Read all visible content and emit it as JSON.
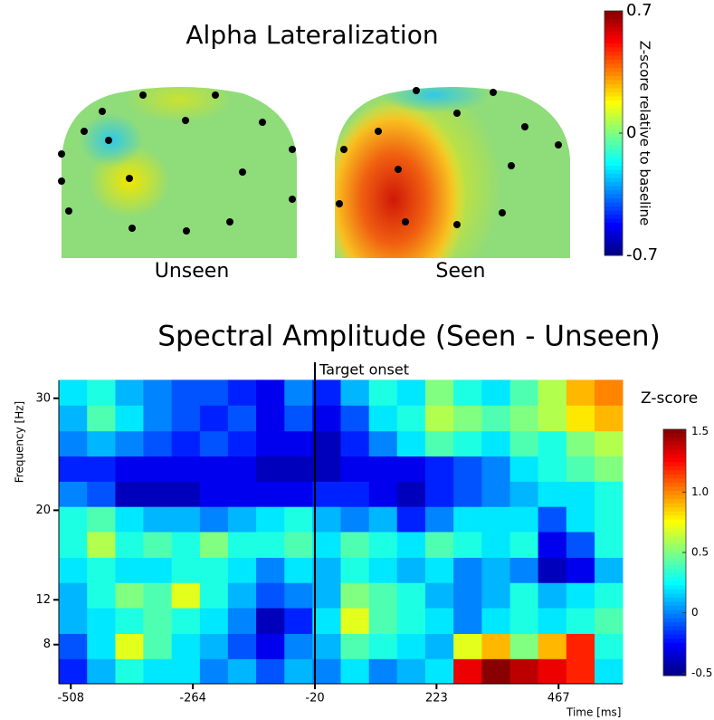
{
  "chart_data": [
    {
      "type": "topomap",
      "title": "Alpha Lateralization",
      "panels": [
        "Unseen",
        "Seen"
      ],
      "colorbar_label": "Z-score relative to baseline",
      "clim": [
        -0.7,
        0.7
      ],
      "cticks": [
        0.7,
        0,
        -0.7
      ]
    },
    {
      "type": "heatmap",
      "title": "Spectral Amplitude (Seen - Unseen)",
      "xlabel": "Time [ms]",
      "ylabel": "Frequency [Hz]",
      "xlim": [
        -532,
        595
      ],
      "ylim": [
        4.5,
        31.6
      ],
      "xticks": [
        -508,
        -264,
        -20,
        223,
        467
      ],
      "yticks": [
        8,
        12,
        20,
        30
      ],
      "annotation": {
        "text": "Target onset",
        "x": -20
      },
      "colorbar_label": "Z-score",
      "clim": [
        -0.52,
        1.52
      ],
      "cticks": [
        1.5,
        {
          "value": 1,
          "label": "1.0"
        },
        0.5,
        0,
        -0.5
      ],
      "x": [
        -504,
        -447,
        -391,
        -335,
        -278,
        -222,
        -166,
        -109,
        -53,
        3,
        60,
        116,
        172,
        229,
        285,
        342,
        398,
        454,
        511,
        567
      ],
      "y": [
        30.5,
        28.2,
        25.9,
        23.7,
        21.4,
        19.2,
        16.9,
        14.6,
        12.4,
        10.1,
        7.8,
        5.6
      ],
      "values": [
        [
          0.2,
          0.3,
          0.1,
          0.0,
          -0.1,
          -0.1,
          -0.2,
          -0.3,
          0.0,
          -0.2,
          0.1,
          0.3,
          0.2,
          0.5,
          0.3,
          0.2,
          0.4,
          0.6,
          0.9,
          1.0
        ],
        [
          0.1,
          0.4,
          0.2,
          0.0,
          -0.1,
          -0.2,
          -0.1,
          -0.3,
          -0.1,
          -0.3,
          -0.1,
          0.2,
          0.3,
          0.6,
          0.5,
          0.4,
          0.5,
          0.6,
          0.8,
          0.9
        ],
        [
          0.0,
          0.1,
          0.0,
          -0.1,
          -0.2,
          -0.1,
          -0.2,
          -0.3,
          -0.3,
          -0.4,
          -0.2,
          0.0,
          0.2,
          0.4,
          0.3,
          0.2,
          0.4,
          0.3,
          0.5,
          0.6
        ],
        [
          -0.2,
          -0.2,
          -0.3,
          -0.3,
          -0.3,
          -0.3,
          -0.3,
          -0.4,
          -0.4,
          -0.4,
          -0.3,
          -0.3,
          -0.3,
          -0.2,
          -0.1,
          0.0,
          0.2,
          0.3,
          0.4,
          0.5
        ],
        [
          0.0,
          -0.1,
          -0.4,
          -0.4,
          -0.4,
          -0.3,
          -0.3,
          -0.3,
          -0.3,
          -0.2,
          -0.2,
          -0.3,
          -0.4,
          -0.2,
          -0.1,
          0.0,
          0.1,
          0.2,
          0.2,
          0.3
        ],
        [
          0.3,
          0.4,
          0.2,
          0.1,
          0.1,
          0.0,
          0.1,
          0.2,
          0.3,
          0.1,
          0.0,
          0.1,
          -0.2,
          0.0,
          0.2,
          0.2,
          0.2,
          -0.1,
          0.2,
          0.3
        ],
        [
          0.3,
          0.6,
          0.3,
          0.4,
          0.3,
          0.5,
          0.3,
          0.3,
          0.4,
          0.2,
          0.4,
          0.3,
          0.2,
          0.4,
          0.3,
          0.2,
          0.3,
          -0.3,
          -0.1,
          0.3
        ],
        [
          0.2,
          0.3,
          0.2,
          0.2,
          0.3,
          0.3,
          0.2,
          0.0,
          0.2,
          0.1,
          0.3,
          0.2,
          0.1,
          0.2,
          0.0,
          0.1,
          0.0,
          -0.4,
          -0.3,
          0.1
        ],
        [
          0.1,
          0.3,
          0.5,
          0.4,
          0.7,
          0.3,
          0.1,
          -0.1,
          0.0,
          0.1,
          0.5,
          0.4,
          0.3,
          0.1,
          0.0,
          0.1,
          0.3,
          0.1,
          0.2,
          0.3
        ],
        [
          0.1,
          0.2,
          0.3,
          0.4,
          0.3,
          0.2,
          0.0,
          -0.4,
          -0.2,
          0.2,
          0.7,
          0.4,
          0.3,
          0.2,
          0.0,
          0.2,
          0.3,
          0.2,
          0.3,
          0.4
        ],
        [
          -0.1,
          0.2,
          0.7,
          0.4,
          0.2,
          0.1,
          -0.1,
          -0.3,
          0.0,
          0.1,
          0.4,
          0.3,
          0.2,
          0.1,
          0.7,
          0.9,
          0.5,
          0.9,
          1.2,
          0.3
        ],
        [
          -0.2,
          0.1,
          0.3,
          0.2,
          0.2,
          0.0,
          0.1,
          -0.1,
          0.1,
          0.0,
          0.2,
          0.0,
          0.1,
          0.2,
          1.3,
          1.5,
          1.4,
          1.3,
          1.2,
          0.2
        ]
      ]
    }
  ]
}
